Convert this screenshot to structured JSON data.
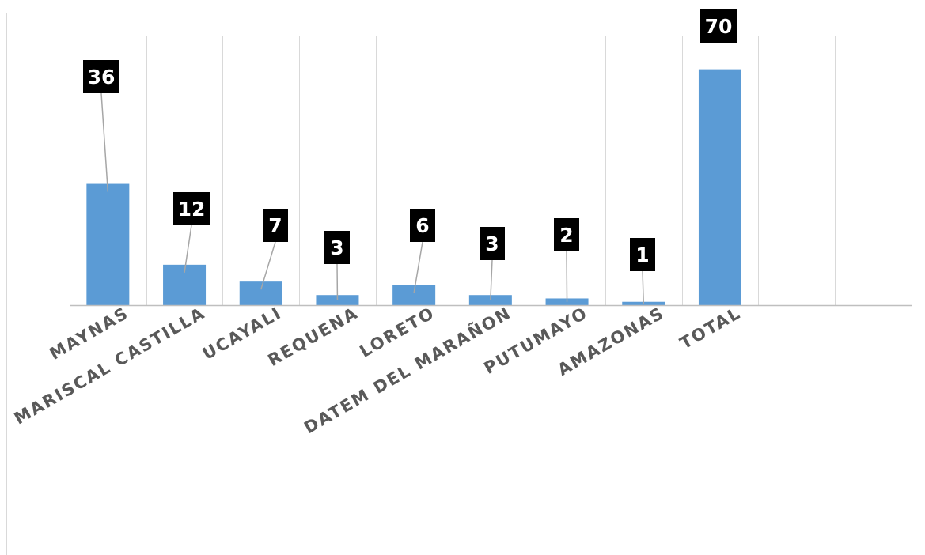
{
  "chart_data": {
    "type": "bar",
    "categories": [
      "MAYNAS",
      "MARISCAL CASTILLA",
      "UCAYALI",
      "REQUENA",
      "LORETO",
      "DATEM DEL MARAÑON",
      "PUTUMAYO",
      "AMAZONAS",
      "TOTAL",
      "",
      ""
    ],
    "values": [
      36,
      12,
      7,
      3,
      6,
      3,
      2,
      1,
      70,
      null,
      null
    ],
    "data_labels": [
      "36",
      "12",
      "7",
      "3",
      "6",
      "3",
      "2",
      "1",
      "70",
      "",
      ""
    ],
    "ylim": [
      0,
      80
    ],
    "grid": "vertical",
    "legend": "none",
    "colors": {
      "bar": "#5b9bd5",
      "label_box": "#000000",
      "label_text": "#ffffff"
    }
  }
}
